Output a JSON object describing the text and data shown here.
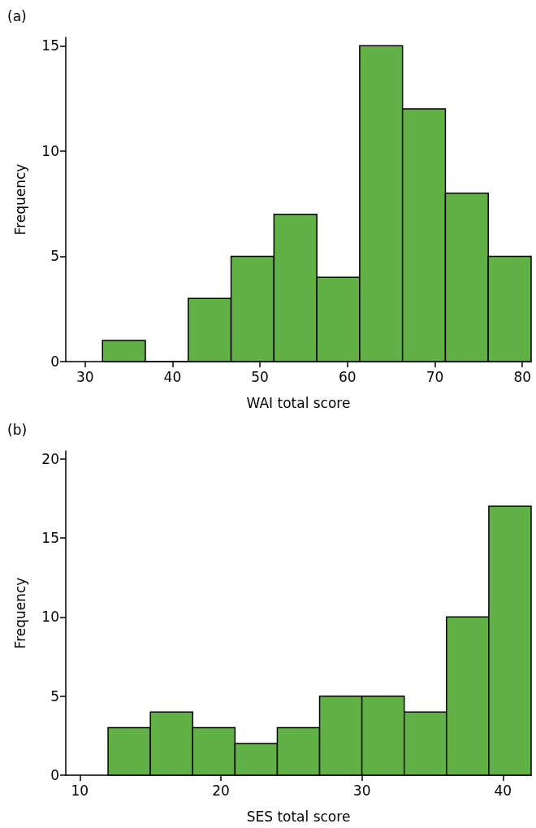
{
  "chart_data": [
    {
      "type": "histogram",
      "title": "(a)",
      "xlabel": "WAI total score",
      "ylabel": "Frequency",
      "color": "#62b146",
      "bins": [
        32,
        36.9,
        41.8,
        46.7,
        51.6,
        56.5,
        61.4,
        66.3,
        71.2,
        76.1,
        81
      ],
      "values": [
        1,
        0,
        3,
        5,
        7,
        4,
        15,
        12,
        8,
        5
      ],
      "xlim": [
        27.8,
        81
      ],
      "xticks": [
        30,
        40,
        50,
        60,
        70,
        80
      ],
      "ylim": [
        0,
        15.4
      ],
      "yticks": [
        0,
        5,
        10,
        15
      ]
    },
    {
      "type": "histogram",
      "title": "(b)",
      "xlabel": "SES total score",
      "ylabel": "Frequency",
      "color": "#62b146",
      "bins": [
        12,
        15,
        18,
        21,
        24,
        27,
        30,
        33,
        36,
        39,
        42
      ],
      "values": [
        3,
        4,
        3,
        2,
        3,
        5,
        5,
        4,
        10,
        17
      ],
      "xlim": [
        9,
        42
      ],
      "xticks": [
        10,
        20,
        30,
        40
      ],
      "ylim": [
        0,
        20.5
      ],
      "yticks": [
        0,
        5,
        10,
        15,
        20
      ]
    }
  ]
}
